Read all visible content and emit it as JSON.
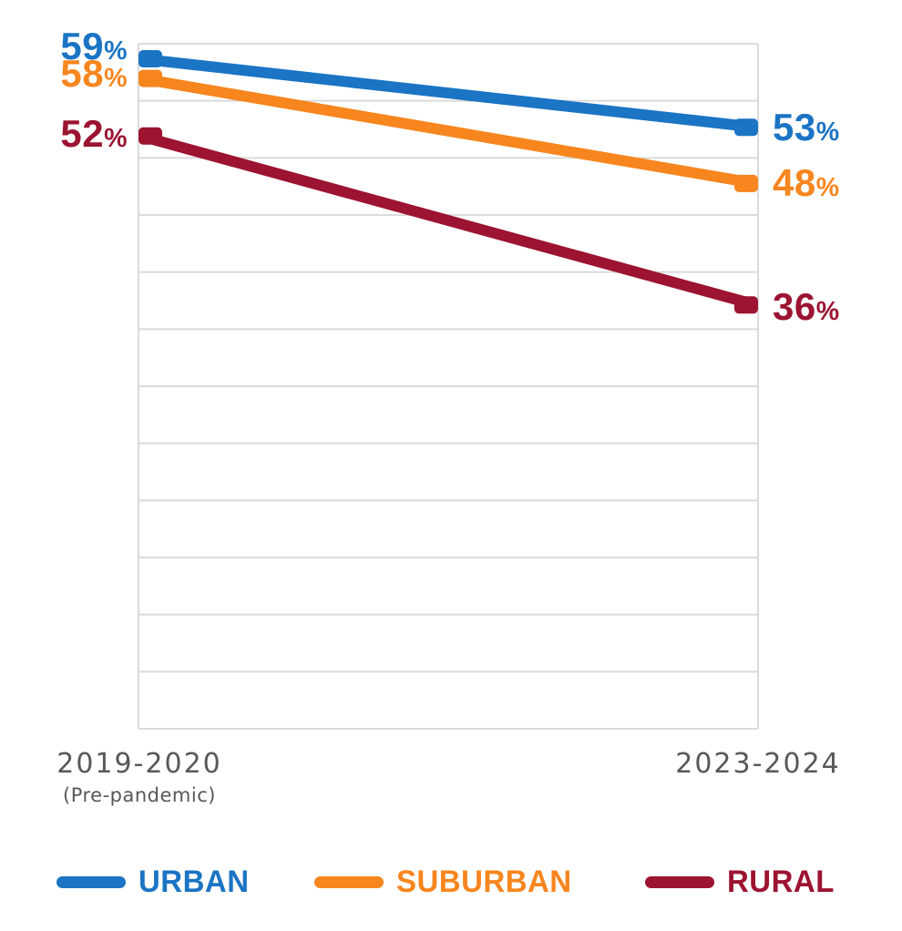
{
  "chart_data": {
    "type": "line",
    "variant": "slopegraph",
    "categories": [
      "2019-2020",
      "2023-2024"
    ],
    "category_note": "(Pre-pandemic)",
    "series": [
      {
        "name": "URBAN",
        "values": [
          59,
          53
        ],
        "labels": [
          "59%",
          "53%"
        ],
        "color": "#1B74C4"
      },
      {
        "name": "SUBURBAN",
        "values": [
          58,
          48
        ],
        "labels": [
          "58%",
          "48%"
        ],
        "color": "#F7861E"
      },
      {
        "name": "RURAL",
        "values": [
          52,
          36
        ],
        "labels": [
          "52%",
          "36%"
        ],
        "color": "#9C1431"
      }
    ],
    "value_suffix": "%",
    "ylim": [
      0,
      60
    ],
    "gridline_step": 5,
    "grid": "horizontal",
    "gridline_color": "#DBDBDB",
    "axis_text_color": "#57585B",
    "legend_position": "bottom",
    "title": "",
    "xlabel": "",
    "ylabel": ""
  }
}
